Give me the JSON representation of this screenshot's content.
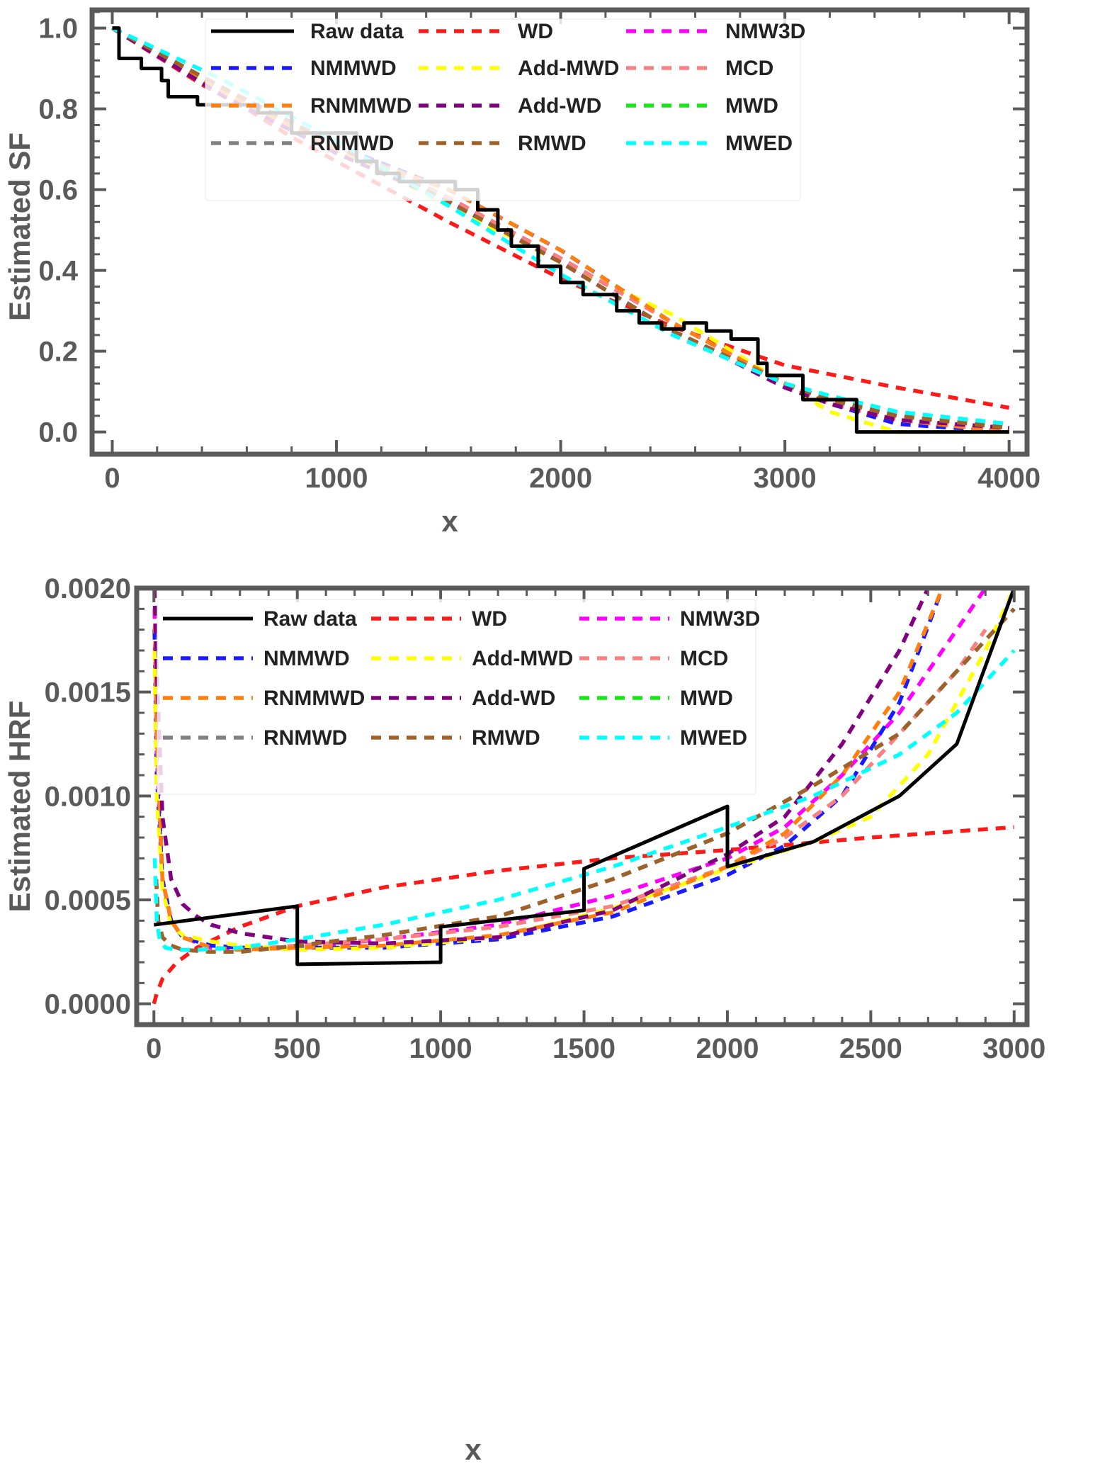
{
  "colors": {
    "Raw data": "#000000",
    "WD": "#ff1a1a",
    "NMW3D": "#ff00ff",
    "NMMWD": "#1a1aff",
    "Add-MWD": "#ffff00",
    "MCD": "#f88080",
    "RNMMWD": "#ff7f0e",
    "Add-WD": "#800080",
    "MWD": "#19e619",
    "RNMWD": "#808080",
    "RMWD": "#a0602a",
    "MWED": "#00ffff",
    "frame": "#5a5a5a"
  },
  "chart_data": [
    {
      "type": "line",
      "title": "",
      "xlabel": "x",
      "ylabel": "Estimated SF",
      "xlim": [
        -90,
        4080
      ],
      "ylim": [
        -0.055,
        1.045
      ],
      "xticks": [
        "0",
        "1000",
        "2000",
        "3000",
        "4000"
      ],
      "yticks": [
        "0.0",
        "0.2",
        "0.4",
        "0.6",
        "0.8",
        "1.0"
      ],
      "legend_position": "top",
      "legend": [
        "Raw data",
        "WD",
        "NMW3D",
        "NMMWD",
        "Add-MWD",
        "MCD",
        "RNMMWD",
        "Add-WD",
        "MWD",
        "RNMWD",
        "RMWD",
        "MWED"
      ],
      "series": [
        {
          "name": "Raw data",
          "style": "step",
          "x": [
            0,
            30,
            30,
            130,
            130,
            220,
            220,
            250,
            250,
            380,
            380,
            650,
            650,
            800,
            800,
            1090,
            1090,
            1180,
            1180,
            1280,
            1280,
            1530,
            1530,
            1630,
            1630,
            1720,
            1720,
            1780,
            1780,
            1900,
            1900,
            2000,
            2000,
            2100,
            2100,
            2250,
            2250,
            2350,
            2350,
            2450,
            2450,
            2550,
            2550,
            2650,
            2650,
            2760,
            2760,
            2880,
            2880,
            2920,
            2920,
            3080,
            3080,
            3320,
            3320,
            4000
          ],
          "y": [
            1.0,
            1.0,
            0.925,
            0.925,
            0.9,
            0.9,
            0.87,
            0.87,
            0.83,
            0.83,
            0.81,
            0.81,
            0.79,
            0.79,
            0.74,
            0.74,
            0.67,
            0.67,
            0.64,
            0.64,
            0.62,
            0.62,
            0.6,
            0.6,
            0.55,
            0.55,
            0.5,
            0.5,
            0.46,
            0.46,
            0.41,
            0.41,
            0.37,
            0.37,
            0.34,
            0.34,
            0.3,
            0.3,
            0.27,
            0.27,
            0.255,
            0.255,
            0.27,
            0.27,
            0.25,
            0.25,
            0.23,
            0.23,
            0.17,
            0.17,
            0.14,
            0.14,
            0.08,
            0.08,
            0.0,
            0.0
          ]
        },
        {
          "name": "WD",
          "x": [
            0,
            200,
            400,
            600,
            800,
            1000,
            1200,
            1500,
            2000,
            2500,
            3000,
            3500,
            4000
          ],
          "y": [
            1.0,
            0.93,
            0.86,
            0.8,
            0.73,
            0.67,
            0.61,
            0.52,
            0.38,
            0.26,
            0.165,
            0.11,
            0.06
          ]
        },
        {
          "name": "NMW3D",
          "x": [
            0,
            500,
            1000,
            1500,
            2000,
            2500,
            3000,
            3200,
            3500,
            4000
          ],
          "y": [
            1.0,
            0.85,
            0.7,
            0.58,
            0.43,
            0.27,
            0.12,
            0.07,
            0.03,
            0.0
          ]
        },
        {
          "name": "NMMWD",
          "x": [
            0,
            500,
            1000,
            1500,
            2000,
            2500,
            3000,
            3200,
            3500,
            4000
          ],
          "y": [
            1.0,
            0.84,
            0.71,
            0.6,
            0.45,
            0.27,
            0.12,
            0.07,
            0.02,
            0.0
          ]
        },
        {
          "name": "Add-MWD",
          "x": [
            0,
            500,
            1000,
            1500,
            2000,
            2500,
            3000,
            3200,
            3500,
            4000
          ],
          "y": [
            1.0,
            0.84,
            0.7,
            0.56,
            0.42,
            0.29,
            0.12,
            0.05,
            0.0,
            0.0
          ]
        },
        {
          "name": "MCD",
          "x": [
            0,
            500,
            1000,
            1500,
            2000,
            2500,
            3000,
            3200,
            3500,
            4000
          ],
          "y": [
            1.0,
            0.85,
            0.71,
            0.58,
            0.43,
            0.27,
            0.12,
            0.07,
            0.03,
            0.0
          ]
        },
        {
          "name": "RNMMWD",
          "x": [
            0,
            500,
            1000,
            1500,
            2000,
            2500,
            3000,
            3200,
            3500,
            4000
          ],
          "y": [
            1.0,
            0.84,
            0.7,
            0.6,
            0.45,
            0.27,
            0.12,
            0.07,
            0.03,
            0.0
          ]
        },
        {
          "name": "Add-WD",
          "x": [
            0,
            500,
            1000,
            1500,
            2000,
            2500,
            3000,
            3200,
            3500,
            4000
          ],
          "y": [
            1.0,
            0.83,
            0.69,
            0.57,
            0.42,
            0.25,
            0.11,
            0.07,
            0.03,
            0.01
          ]
        },
        {
          "name": "MWD",
          "x": [
            0,
            500,
            1000,
            1500,
            2000,
            2500,
            3000,
            3200,
            3500,
            4000
          ],
          "y": [
            1.0,
            0.85,
            0.71,
            0.57,
            0.42,
            0.25,
            0.12,
            0.08,
            0.04,
            0.01
          ]
        },
        {
          "name": "RNMWD",
          "x": [
            0,
            500,
            1000,
            1500,
            2000,
            2500,
            3000,
            3200,
            3500,
            4000
          ],
          "y": [
            1.0,
            0.85,
            0.71,
            0.57,
            0.42,
            0.25,
            0.12,
            0.08,
            0.04,
            0.01
          ]
        },
        {
          "name": "RMWD",
          "x": [
            0,
            500,
            1000,
            1500,
            2000,
            2500,
            3000,
            3200,
            3500,
            4000
          ],
          "y": [
            1.0,
            0.85,
            0.71,
            0.57,
            0.42,
            0.25,
            0.12,
            0.08,
            0.04,
            0.01
          ]
        },
        {
          "name": "MWED",
          "x": [
            0,
            500,
            1000,
            1500,
            2000,
            2500,
            3000,
            3200,
            3500,
            4000
          ],
          "y": [
            1.0,
            0.87,
            0.72,
            0.56,
            0.39,
            0.24,
            0.12,
            0.09,
            0.05,
            0.02
          ]
        }
      ]
    },
    {
      "type": "line",
      "title": "",
      "xlabel": "x",
      "ylabel": "Estimated HRF",
      "xlim": [
        -60,
        3045
      ],
      "ylim": [
        -0.0001,
        0.002
      ],
      "xticks": [
        "0",
        "500",
        "1000",
        "1500",
        "2000",
        "2500",
        "3000"
      ],
      "yticks": [
        "0.0000",
        "0.0005",
        "0.0010",
        "0.0015",
        "0.0020"
      ],
      "legend_position": "top",
      "legend": [
        "Raw data",
        "WD",
        "NMW3D",
        "NMMWD",
        "Add-MWD",
        "MCD",
        "RNMMWD",
        "Add-WD",
        "MWD",
        "RNMWD",
        "RMWD",
        "MWED"
      ],
      "series": [
        {
          "name": "Raw data",
          "style": "step",
          "x": [
            0,
            500,
            500,
            1000,
            1000,
            1500,
            1500,
            2000,
            2000,
            2300,
            2600,
            2800,
            3000
          ],
          "y": [
            0.00038,
            0.00047,
            0.00019,
            0.0002,
            0.00037,
            0.00045,
            0.00065,
            0.00095,
            0.00066,
            0.00078,
            0.001,
            0.00125,
            0.002
          ]
        },
        {
          "name": "WD",
          "x": [
            0,
            10,
            30,
            80,
            150,
            300,
            500,
            800,
            1200,
            1600,
            2000,
            2500,
            3000
          ],
          "y": [
            0.0,
            5e-05,
            0.00012,
            0.0002,
            0.00027,
            0.00037,
            0.00047,
            0.00056,
            0.00064,
            0.0007,
            0.00074,
            0.0008,
            0.00085
          ]
        },
        {
          "name": "NMW3D",
          "x": [
            2,
            10,
            30,
            60,
            100,
            200,
            300,
            500,
            800,
            1200,
            1600,
            2000,
            2200,
            2400,
            2600,
            2800,
            2900
          ],
          "y": [
            0.0019,
            0.0012,
            0.0006,
            0.0004,
            0.00032,
            0.00027,
            0.00026,
            0.00027,
            0.00031,
            0.00038,
            0.00052,
            0.0007,
            0.00085,
            0.0011,
            0.0014,
            0.0018,
            0.002
          ]
        },
        {
          "name": "NMMWD",
          "x": [
            2,
            10,
            30,
            60,
            100,
            200,
            300,
            500,
            800,
            1200,
            1600,
            2000,
            2200,
            2400,
            2600,
            2750
          ],
          "y": [
            0.0018,
            0.0011,
            0.0006,
            0.0004,
            0.00032,
            0.00028,
            0.00027,
            0.00027,
            0.00027,
            0.00031,
            0.00042,
            0.00062,
            0.00076,
            0.001,
            0.00145,
            0.002
          ]
        },
        {
          "name": "Add-MWD",
          "x": [
            2,
            10,
            30,
            60,
            100,
            200,
            300,
            500,
            800,
            1200,
            1600,
            2000,
            2300,
            2500,
            2700,
            2900,
            3000
          ],
          "y": [
            0.0017,
            0.001,
            0.00055,
            0.00038,
            0.00033,
            0.0003,
            0.00028,
            0.00026,
            0.00027,
            0.00032,
            0.00046,
            0.00065,
            0.00078,
            0.0009,
            0.0012,
            0.0017,
            0.002
          ]
        },
        {
          "name": "MCD",
          "x": [
            2,
            10,
            30,
            60,
            100,
            200,
            300,
            500,
            800,
            1200,
            1600,
            2000,
            2200,
            2400,
            2600,
            2800,
            2900
          ],
          "y": [
            0.002,
            0.0013,
            0.0006,
            0.0004,
            0.00032,
            0.00027,
            0.00026,
            0.00028,
            0.00031,
            0.00037,
            0.00047,
            0.00066,
            0.0008,
            0.001,
            0.0013,
            0.0016,
            0.0018
          ]
        },
        {
          "name": "RNMMWD",
          "x": [
            2,
            10,
            30,
            60,
            100,
            200,
            300,
            500,
            800,
            1200,
            1600,
            2000,
            2200,
            2400,
            2600,
            2750
          ],
          "y": [
            0.002,
            0.0013,
            0.0006,
            0.0004,
            0.00032,
            0.00027,
            0.00026,
            0.00027,
            0.00028,
            0.00033,
            0.00044,
            0.00066,
            0.00082,
            0.0011,
            0.0015,
            0.002
          ]
        },
        {
          "name": "Add-WD",
          "x": [
            2,
            10,
            30,
            60,
            100,
            150,
            200,
            300,
            500,
            800,
            1200,
            1600,
            2000,
            2200,
            2400,
            2600,
            2700
          ],
          "y": [
            0.002,
            0.0016,
            0.0009,
            0.0006,
            0.00048,
            0.00042,
            0.00038,
            0.00034,
            0.0003,
            0.00029,
            0.00032,
            0.00045,
            0.00072,
            0.0009,
            0.00125,
            0.0017,
            0.002
          ]
        },
        {
          "name": "MWD",
          "x": [
            8,
            15,
            30,
            60,
            100,
            200,
            300,
            500,
            800,
            1200,
            1600,
            2000,
            2300,
            2600,
            2800,
            3000
          ],
          "y": [
            0.0006,
            0.0004,
            0.00032,
            0.00028,
            0.00026,
            0.00025,
            0.00025,
            0.00028,
            0.00033,
            0.00042,
            0.0006,
            0.00082,
            0.00105,
            0.0013,
            0.0016,
            0.0019
          ]
        },
        {
          "name": "RNMWD",
          "x": [
            8,
            15,
            30,
            60,
            100,
            200,
            300,
            500,
            800,
            1200,
            1600,
            2000,
            2300,
            2600,
            2800,
            3000
          ],
          "y": [
            0.0006,
            0.0004,
            0.00032,
            0.00028,
            0.00026,
            0.00025,
            0.00025,
            0.00028,
            0.00033,
            0.00042,
            0.0006,
            0.00082,
            0.00105,
            0.0013,
            0.0016,
            0.0019
          ]
        },
        {
          "name": "RMWD",
          "x": [
            8,
            15,
            30,
            60,
            100,
            200,
            300,
            500,
            800,
            1200,
            1600,
            2000,
            2300,
            2600,
            2800,
            3000
          ],
          "y": [
            0.0006,
            0.0004,
            0.00032,
            0.00028,
            0.00026,
            0.00025,
            0.00025,
            0.00028,
            0.00033,
            0.00042,
            0.0006,
            0.00082,
            0.00105,
            0.0013,
            0.0016,
            0.0019
          ]
        },
        {
          "name": "MWED",
          "x": [
            3,
            10,
            20,
            40,
            80,
            150,
            300,
            500,
            800,
            1200,
            1600,
            2000,
            2300,
            2600,
            2800,
            3000
          ],
          "y": [
            0.0007,
            0.0004,
            0.00031,
            0.00027,
            0.00026,
            0.00026,
            0.00027,
            0.00031,
            0.00038,
            0.0005,
            0.00066,
            0.00085,
            0.001,
            0.0012,
            0.0014,
            0.0017
          ]
        }
      ]
    }
  ]
}
